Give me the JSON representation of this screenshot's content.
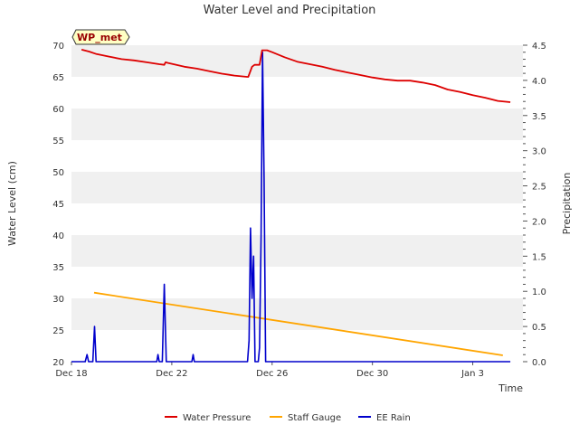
{
  "chart_data": {
    "type": "line",
    "title": "Water Level and Precipitation",
    "badge": "WP_met",
    "xlabel": "Time",
    "ylabel": "Water Level (cm)",
    "y2label": "Precipitation",
    "x_tick_labels": [
      "Dec 18",
      "Dec 22",
      "Dec 26",
      "Dec 30",
      "Jan 3"
    ],
    "x_tick_days": [
      0,
      4,
      8,
      12,
      16
    ],
    "xlim_days": [
      0,
      18
    ],
    "ylim": [
      20,
      70
    ],
    "y_ticks": [
      20,
      25,
      30,
      35,
      40,
      45,
      50,
      55,
      60,
      65,
      70
    ],
    "y2lim": [
      0,
      4.5
    ],
    "y2_ticks": [
      0.0,
      0.5,
      1.0,
      1.5,
      2.0,
      2.5,
      3.0,
      3.5,
      4.0,
      4.5
    ],
    "grid": true,
    "legend_position": "bottom",
    "series": [
      {
        "name": "Water Pressure",
        "axis": "left",
        "color": "#dd0000",
        "points": [
          [
            0.4,
            69.3
          ],
          [
            0.7,
            69.0
          ],
          [
            1.0,
            68.6
          ],
          [
            1.5,
            68.2
          ],
          [
            2.0,
            67.8
          ],
          [
            2.5,
            67.6
          ],
          [
            3.0,
            67.3
          ],
          [
            3.5,
            67.0
          ],
          [
            3.7,
            66.9
          ],
          [
            3.75,
            67.3
          ],
          [
            3.85,
            67.2
          ],
          [
            4.5,
            66.6
          ],
          [
            5.0,
            66.3
          ],
          [
            5.5,
            65.9
          ],
          [
            6.0,
            65.5
          ],
          [
            6.5,
            65.2
          ],
          [
            7.0,
            65.0
          ],
          [
            7.05,
            65.0
          ],
          [
            7.2,
            66.6
          ],
          [
            7.3,
            66.9
          ],
          [
            7.5,
            66.9
          ],
          [
            7.6,
            69.2
          ],
          [
            7.8,
            69.2
          ],
          [
            8.0,
            68.9
          ],
          [
            8.5,
            68.1
          ],
          [
            9.0,
            67.4
          ],
          [
            9.5,
            67.0
          ],
          [
            10.0,
            66.6
          ],
          [
            10.5,
            66.1
          ],
          [
            11.0,
            65.7
          ],
          [
            11.5,
            65.3
          ],
          [
            12.0,
            64.9
          ],
          [
            12.5,
            64.6
          ],
          [
            13.0,
            64.4
          ],
          [
            13.5,
            64.4
          ],
          [
            14.0,
            64.1
          ],
          [
            14.5,
            63.7
          ],
          [
            15.0,
            63.0
          ],
          [
            15.5,
            62.6
          ],
          [
            16.0,
            62.1
          ],
          [
            16.5,
            61.7
          ],
          [
            17.0,
            61.2
          ],
          [
            17.5,
            61.0
          ]
        ]
      },
      {
        "name": "Staff Gauge",
        "axis": "left",
        "color": "#ffa500",
        "points": [
          [
            0.9,
            30.9
          ],
          [
            17.2,
            21.0
          ]
        ]
      },
      {
        "name": "EE Rain",
        "axis": "right",
        "color": "#0000cc",
        "points": [
          [
            0.0,
            0.0
          ],
          [
            0.55,
            0.0
          ],
          [
            0.62,
            0.1
          ],
          [
            0.68,
            0.0
          ],
          [
            0.85,
            0.0
          ],
          [
            0.92,
            0.5
          ],
          [
            0.98,
            0.0
          ],
          [
            3.4,
            0.0
          ],
          [
            3.45,
            0.1
          ],
          [
            3.5,
            0.0
          ],
          [
            3.62,
            0.0
          ],
          [
            3.7,
            1.1
          ],
          [
            3.78,
            0.0
          ],
          [
            4.8,
            0.0
          ],
          [
            4.85,
            0.1
          ],
          [
            4.9,
            0.0
          ],
          [
            7.02,
            0.0
          ],
          [
            7.08,
            0.3
          ],
          [
            7.14,
            1.9
          ],
          [
            7.2,
            0.9
          ],
          [
            7.26,
            1.5
          ],
          [
            7.32,
            0.0
          ],
          [
            7.45,
            0.0
          ],
          [
            7.5,
            0.2
          ],
          [
            7.56,
            1.8
          ],
          [
            7.62,
            4.4
          ],
          [
            7.68,
            2.6
          ],
          [
            7.74,
            0.0
          ],
          [
            7.8,
            0.0
          ],
          [
            17.5,
            0.0
          ]
        ]
      }
    ]
  }
}
